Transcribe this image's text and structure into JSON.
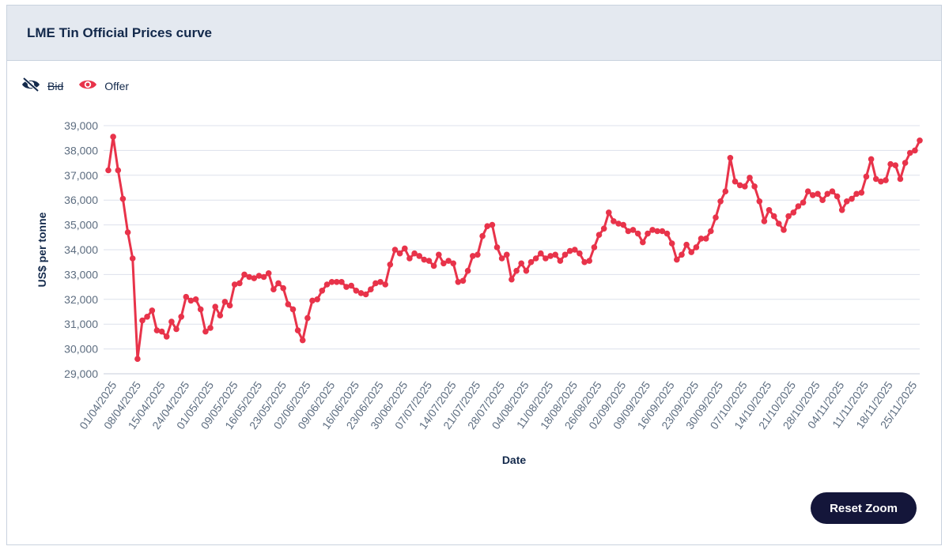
{
  "card": {
    "title": "LME Tin Official Prices curve"
  },
  "legend": [
    {
      "name": "Bid",
      "icon": "eye-slash-icon",
      "color": "#13294b",
      "hidden": true
    },
    {
      "name": "Offer",
      "icon": "eye-icon",
      "color": "#e8334a",
      "hidden": false
    }
  ],
  "reset_zoom_label": "Reset Zoom",
  "chart_data": {
    "type": "line",
    "title": "",
    "xlabel": "Date",
    "ylabel": "US$ per tonne",
    "ylim": [
      29000,
      39000
    ],
    "yticks": [
      29000,
      30000,
      31000,
      32000,
      33000,
      34000,
      35000,
      36000,
      37000,
      38000,
      39000
    ],
    "ytick_labels": [
      "29,000",
      "30,000",
      "31,000",
      "32,000",
      "33,000",
      "34,000",
      "35,000",
      "36,000",
      "37,000",
      "38,000",
      "39,000"
    ],
    "xtick_labels": [
      "01/04/2025",
      "08/04/2025",
      "15/04/2025",
      "24/04/2025",
      "01/05/2025",
      "09/05/2025",
      "16/05/2025",
      "23/05/2025",
      "02/06/2025",
      "09/06/2025",
      "16/06/2025",
      "23/06/2025",
      "30/06/2025",
      "07/07/2025",
      "14/07/2025",
      "21/07/2025",
      "28/07/2025",
      "04/08/2025",
      "11/08/2025",
      "18/08/2025",
      "26/08/2025",
      "02/09/2025",
      "09/09/2025",
      "16/09/2025",
      "23/09/2025",
      "30/09/2025",
      "07/10/2025",
      "14/10/2025",
      "21/10/2025",
      "28/10/2025",
      "04/11/2025",
      "11/11/2025",
      "18/11/2025",
      "25/11/2025"
    ],
    "grid": true,
    "legend_position": "top-left",
    "series": [
      {
        "name": "Offer",
        "color": "#e8334a",
        "values": [
          37200,
          38550,
          37200,
          36050,
          34700,
          33650,
          29600,
          31150,
          31300,
          31550,
          30750,
          30700,
          30500,
          31100,
          30800,
          31300,
          32100,
          31950,
          32000,
          31600,
          30700,
          30850,
          31700,
          31350,
          31900,
          31750,
          32600,
          32650,
          33000,
          32900,
          32850,
          32950,
          32900,
          33050,
          32400,
          32650,
          32450,
          31800,
          31600,
          30750,
          30350,
          31250,
          31950,
          32000,
          32350,
          32600,
          32700,
          32700,
          32700,
          32500,
          32550,
          32350,
          32250,
          32200,
          32400,
          32650,
          32700,
          32600,
          33400,
          34000,
          33850,
          34050,
          33650,
          33850,
          33750,
          33600,
          33550,
          33350,
          33800,
          33450,
          33550,
          33450,
          32700,
          32750,
          33150,
          33750,
          33800,
          34550,
          34950,
          35000,
          34100,
          33650,
          33800,
          32800,
          33150,
          33450,
          33150,
          33500,
          33650,
          33850,
          33650,
          33750,
          33800,
          33550,
          33800,
          33950,
          34000,
          33850,
          33500,
          33550,
          34100,
          34600,
          34850,
          35500,
          35150,
          35050,
          35000,
          34750,
          34800,
          34650,
          34300,
          34650,
          34800,
          34750,
          34750,
          34650,
          34250,
          33600,
          33800,
          34200,
          33900,
          34100,
          34450,
          34450,
          34750,
          35300,
          35950,
          36350,
          37700,
          36750,
          36600,
          36550,
          36900,
          36550,
          35950,
          35150,
          35600,
          35350,
          35050,
          34800,
          35350,
          35500,
          35750,
          35900,
          36350,
          36200,
          36250,
          36000,
          36250,
          36350,
          36150,
          35600,
          35950,
          36050,
          36250,
          36300,
          36950,
          37650,
          36850,
          36750,
          36800,
          37450,
          37400,
          36850,
          37500,
          37900,
          38000,
          38400
        ]
      }
    ]
  }
}
